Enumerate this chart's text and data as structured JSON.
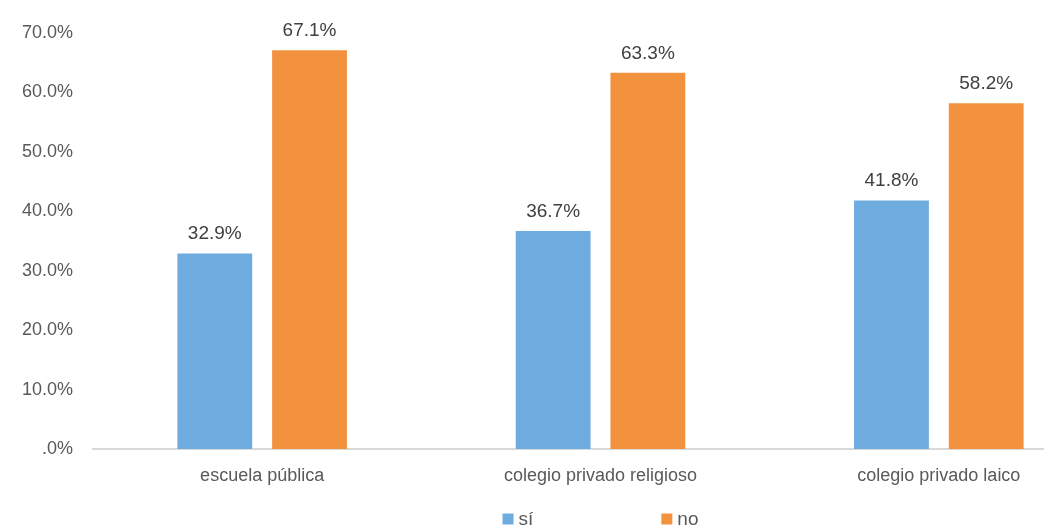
{
  "chart_data": {
    "type": "bar",
    "categories": [
      "escuela pública",
      "colegio privado religioso",
      "colegio privado laico"
    ],
    "series": [
      {
        "name": "sí",
        "color": "#6eace0",
        "values": [
          32.9,
          36.7,
          41.8
        ],
        "value_labels": [
          "32.9%",
          "36.7%",
          "41.8%"
        ]
      },
      {
        "name": "no",
        "color": "#f2923f",
        "values": [
          67.1,
          63.3,
          58.2
        ],
        "value_labels": [
          "67.1%",
          "63.3%",
          "58.2%"
        ]
      }
    ],
    "ylim": [
      0,
      70
    ],
    "yticks": [
      {
        "value": 0,
        "label": ".0%"
      },
      {
        "value": 10,
        "label": "10.0%"
      },
      {
        "value": 20,
        "label": "20.0%"
      },
      {
        "value": 30,
        "label": "30.0%"
      },
      {
        "value": 40,
        "label": "40.0%"
      },
      {
        "value": 50,
        "label": "50.0%"
      },
      {
        "value": 60,
        "label": "60.0%"
      },
      {
        "value": 70,
        "label": "70.0%"
      }
    ],
    "grid": false,
    "legend": "bottom"
  }
}
